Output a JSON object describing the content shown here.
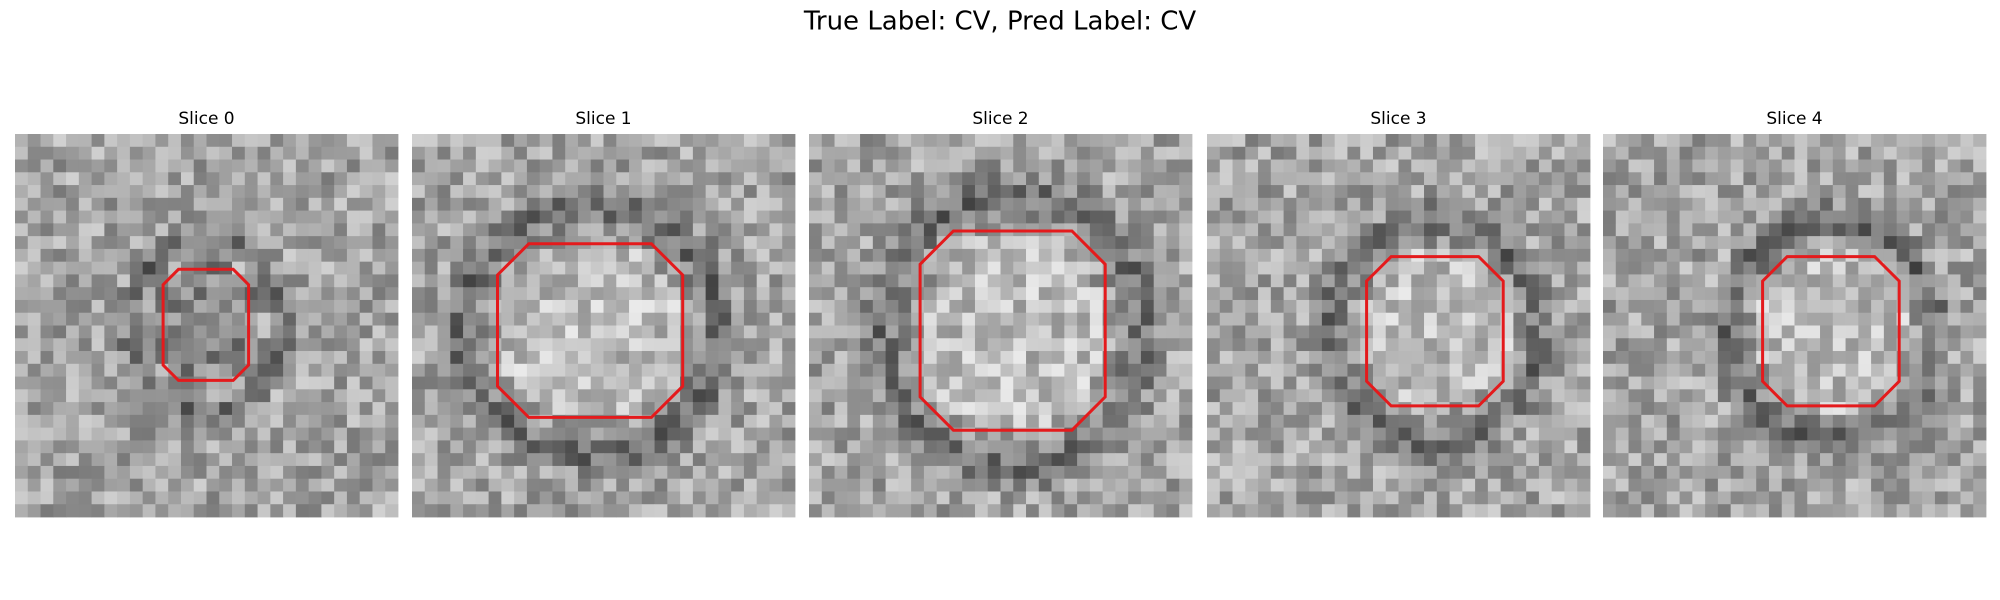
{
  "title": "True Label: CV, Pred Label: CV",
  "panels": [
    {
      "title": "Slice 0"
    },
    {
      "title": "Slice 1"
    },
    {
      "title": "Slice 2"
    },
    {
      "title": "Slice 3"
    },
    {
      "title": "Slice 4"
    }
  ]
}
